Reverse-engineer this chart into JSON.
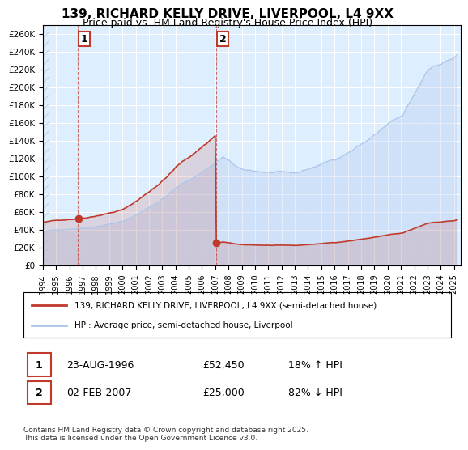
{
  "title": "139, RICHARD KELLY DRIVE, LIVERPOOL, L4 9XX",
  "subtitle": "Price paid vs. HM Land Registry's House Price Index (HPI)",
  "hpi_color": "#aec6e8",
  "price_color": "#c0392b",
  "bg_color": "#ffffff",
  "plot_bg_color": "#ddeeff",
  "grid_color": "#ffffff",
  "ylim": [
    0,
    270000
  ],
  "yticks": [
    0,
    20000,
    40000,
    60000,
    80000,
    100000,
    120000,
    140000,
    160000,
    180000,
    200000,
    220000,
    240000,
    260000
  ],
  "ytick_labels": [
    "£0",
    "£20K",
    "£40K",
    "£60K",
    "£80K",
    "£100K",
    "£120K",
    "£140K",
    "£160K",
    "£180K",
    "£200K",
    "£220K",
    "£240K",
    "£260K"
  ],
  "xlabel_start_year": 1994,
  "xlabel_end_year": 2025,
  "sale1_date": 1996.65,
  "sale1_price": 52450,
  "sale2_date": 2007.09,
  "sale2_price": 25000,
  "sale1_label": "1",
  "sale2_label": "2",
  "legend_line1": "139, RICHARD KELLY DRIVE, LIVERPOOL, L4 9XX (semi-detached house)",
  "legend_line2": "HPI: Average price, semi-detached house, Liverpool",
  "table_row1": [
    "1",
    "23-AUG-1996",
    "£52,450",
    "18% ↑ HPI"
  ],
  "table_row2": [
    "2",
    "02-FEB-2007",
    "£25,000",
    "82% ↓ HPI"
  ],
  "footnote": "Contains HM Land Registry data © Crown copyright and database right 2025.\nThis data is licensed under the Open Government Licence v3.0.",
  "hatch_color": "#c8c8c8"
}
